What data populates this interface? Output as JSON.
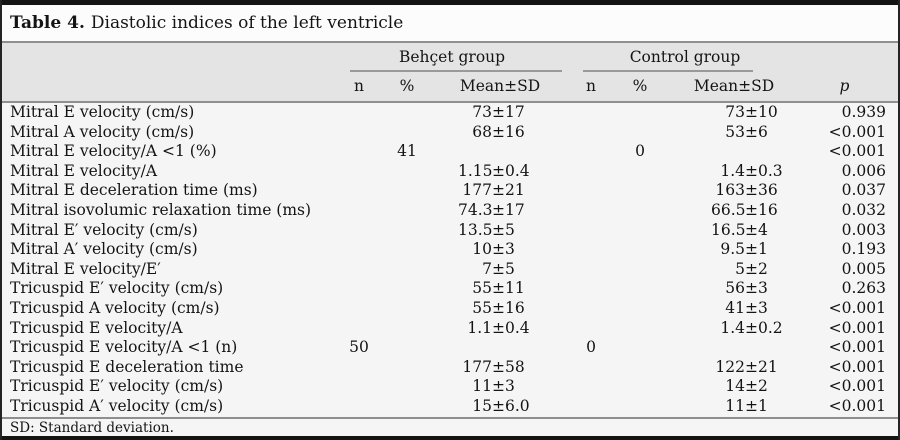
{
  "title": {
    "number": "Table 4.",
    "caption": "Diastolic indices of the left ventricle"
  },
  "header": {
    "group1": "Behçet group",
    "group2": "Control group",
    "sub_n": "n",
    "sub_pct": "%",
    "sub_mean": "Mean±SD",
    "p": "p"
  },
  "rows": [
    {
      "label": "Mitral E velocity (cm/s)",
      "b_n": "",
      "b_pct": "",
      "b_mean": "73±17",
      "c_n": "",
      "c_pct": "",
      "c_mean": "73±10",
      "p": "0.939"
    },
    {
      "label": "Mitral A velocity (cm/s)",
      "b_n": "",
      "b_pct": "",
      "b_mean": "68±16",
      "c_n": "",
      "c_pct": "",
      "c_mean": "53±6",
      "p": "<0.001"
    },
    {
      "label": "Mitral E velocity/A <1 (%)",
      "b_n": "",
      "b_pct": "41",
      "b_mean": "",
      "c_n": "",
      "c_pct": "0",
      "c_mean": "",
      "p": "<0.001"
    },
    {
      "label": "Mitral E velocity/A",
      "b_n": "",
      "b_pct": "",
      "b_mean": "1.15±0.4",
      "c_n": "",
      "c_pct": "",
      "c_mean": "1.4±0.3",
      "p": "0.006"
    },
    {
      "label": "Mitral E deceleration time (ms)",
      "b_n": "",
      "b_pct": "",
      "b_mean": "177±21",
      "c_n": "",
      "c_pct": "",
      "c_mean": "163±36",
      "p": "0.037"
    },
    {
      "label": "Mitral isovolumic relaxation time (ms)",
      "b_n": "",
      "b_pct": "",
      "b_mean": "74.3±17",
      "c_n": "",
      "c_pct": "",
      "c_mean": "66.5±16",
      "p": "0.032"
    },
    {
      "label": "Mitral E′ velocity (cm/s)",
      "b_n": "",
      "b_pct": "",
      "b_mean": "13.5±5",
      "c_n": "",
      "c_pct": "",
      "c_mean": "16.5±4",
      "p": "0.003"
    },
    {
      "label": "Mitral A′ velocity (cm/s)",
      "b_n": "",
      "b_pct": "",
      "b_mean": "10±3",
      "c_n": "",
      "c_pct": "",
      "c_mean": "9.5±1",
      "p": "0.193"
    },
    {
      "label": "Mitral E velocity/E′",
      "b_n": "",
      "b_pct": "",
      "b_mean": "7±5",
      "c_n": "",
      "c_pct": "",
      "c_mean": "5±2",
      "p": "0.005"
    },
    {
      "label": "Tricuspid E′ velocity (cm/s)",
      "b_n": "",
      "b_pct": "",
      "b_mean": "55±11",
      "c_n": "",
      "c_pct": "",
      "c_mean": "56±3",
      "p": "0.263"
    },
    {
      "label": "Tricuspid A velocity (cm/s)",
      "b_n": "",
      "b_pct": "",
      "b_mean": "55±16",
      "c_n": "",
      "c_pct": "",
      "c_mean": "41±3",
      "p": "<0.001"
    },
    {
      "label": "Tricuspid E velocity/A",
      "b_n": "",
      "b_pct": "",
      "b_mean": "1.1±0.4",
      "c_n": "",
      "c_pct": "",
      "c_mean": "1.4±0.2",
      "p": "<0.001"
    },
    {
      "label": "Tricuspid E velocity/A <1 (n)",
      "b_n": "50",
      "b_pct": "",
      "b_mean": "",
      "c_n": "0",
      "c_pct": "",
      "c_mean": "",
      "p": "<0.001"
    },
    {
      "label": "Tricuspid E deceleration time",
      "b_n": "",
      "b_pct": "",
      "b_mean": "177±58",
      "c_n": "",
      "c_pct": "",
      "c_mean": "122±21",
      "p": "<0.001"
    },
    {
      "label": "Tricuspid E′ velocity (cm/s)",
      "b_n": "",
      "b_pct": "",
      "b_mean": "11±3",
      "c_n": "",
      "c_pct": "",
      "c_mean": "14±2",
      "p": "<0.001"
    },
    {
      "label": "Tricuspid A′ velocity (cm/s)",
      "b_n": "",
      "b_pct": "",
      "b_mean": "15±6.0",
      "c_n": "",
      "c_pct": "",
      "c_mean": "11±1",
      "p": "<0.001"
    }
  ],
  "footnote": "SD: Standard deviation.",
  "colors": {
    "top_bar": "#141414",
    "header_band": "#e4e4e5",
    "body_bg": "#f5f5f5",
    "title_bg": "#fcfcfc",
    "rule": "#8f8f8f"
  }
}
